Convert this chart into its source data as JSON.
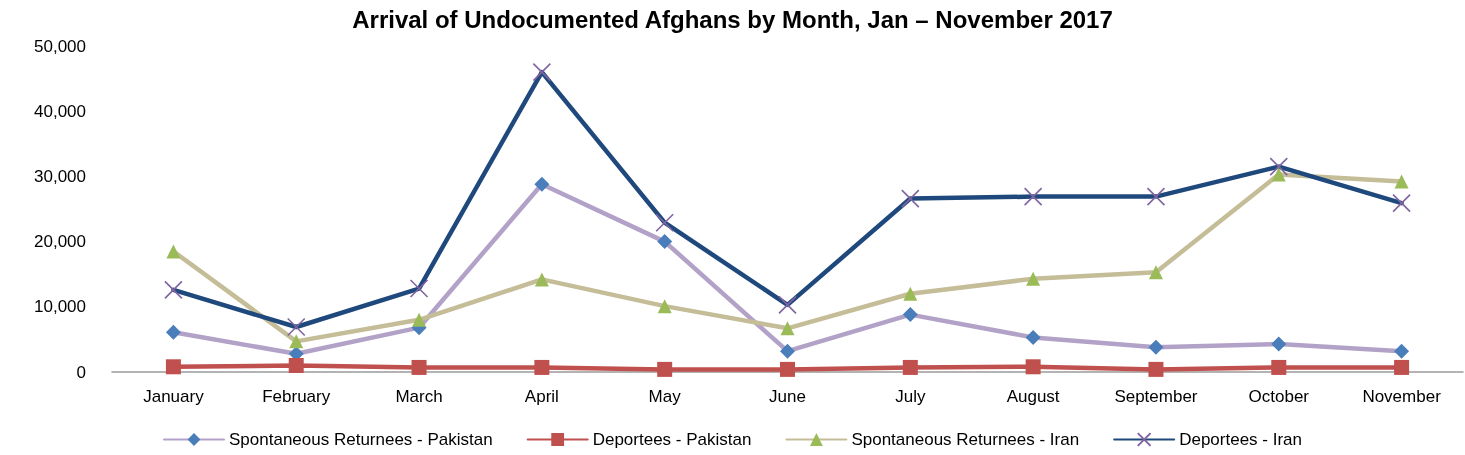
{
  "chart_data": {
    "type": "line",
    "title": "Arrival of Undocumented Afghans by Month, Jan – November 2017",
    "categories": [
      "January",
      "February",
      "March",
      "April",
      "May",
      "June",
      "July",
      "August",
      "September",
      "October",
      "November"
    ],
    "series": [
      {
        "name": "Spontaneous Returnees - Pakistan",
        "color": "#b3a2c7",
        "marker": "diamond",
        "colors": [
          "#4a7ebb",
          "#4a7ebb",
          "#4a7ebb",
          "#4a7ebb",
          "#4a7ebb",
          "#4a7ebb",
          "#4a7ebb",
          "#4a7ebb",
          "#4a7ebb",
          "#4a7ebb",
          "#4a7ebb"
        ],
        "values": [
          6100,
          2800,
          6800,
          28800,
          20000,
          3200,
          8800,
          5300,
          3800,
          4300,
          3200
        ]
      },
      {
        "name": "Deportees - Pakistan",
        "color": "#c0504d",
        "marker": "square",
        "colors": [
          "#c0504d",
          "#c0504d",
          "#c0504d",
          "#c0504d",
          "#c0504d",
          "#c0504d",
          "#c0504d",
          "#c0504d",
          "#c0504d",
          "#c0504d",
          "#c0504d"
        ],
        "values": [
          800,
          1000,
          700,
          700,
          400,
          400,
          700,
          800,
          400,
          700,
          700
        ]
      },
      {
        "name": "Spontaneous Returnees - Iran",
        "color": "#c4bd97",
        "marker": "triangle",
        "colors": [
          "#9bbb59",
          "#9bbb59",
          "#9bbb59",
          "#9bbb59",
          "#9bbb59",
          "#9bbb59",
          "#9bbb59",
          "#9bbb59",
          "#9bbb59",
          "#9bbb59",
          "#9bbb59"
        ],
        "values": [
          18500,
          4700,
          8000,
          14200,
          10100,
          6700,
          12000,
          14300,
          15300,
          30300,
          29200
        ]
      },
      {
        "name": "Deportees - Iran",
        "color": "#1f497d",
        "marker": "cross",
        "colors": [
          "#8064a2",
          "#8064a2",
          "#8064a2",
          "#8064a2",
          "#8064a2",
          "#8064a2",
          "#8064a2",
          "#8064a2",
          "#8064a2",
          "#8064a2",
          "#8064a2"
        ],
        "values": [
          12600,
          6900,
          12800,
          46000,
          22900,
          10300,
          26600,
          26900,
          26900,
          31500,
          25900
        ]
      }
    ],
    "ylim": [
      0,
      50000
    ],
    "yticks": [
      {
        "value": 0,
        "label": "0"
      },
      {
        "value": 10000,
        "label": "10,000"
      },
      {
        "value": 20000,
        "label": "20,000"
      },
      {
        "value": 30000,
        "label": "30,000"
      },
      {
        "value": 40000,
        "label": "40,000"
      },
      {
        "value": 50000,
        "label": "50,000"
      }
    ],
    "grid": false,
    "legend": "bottom"
  }
}
